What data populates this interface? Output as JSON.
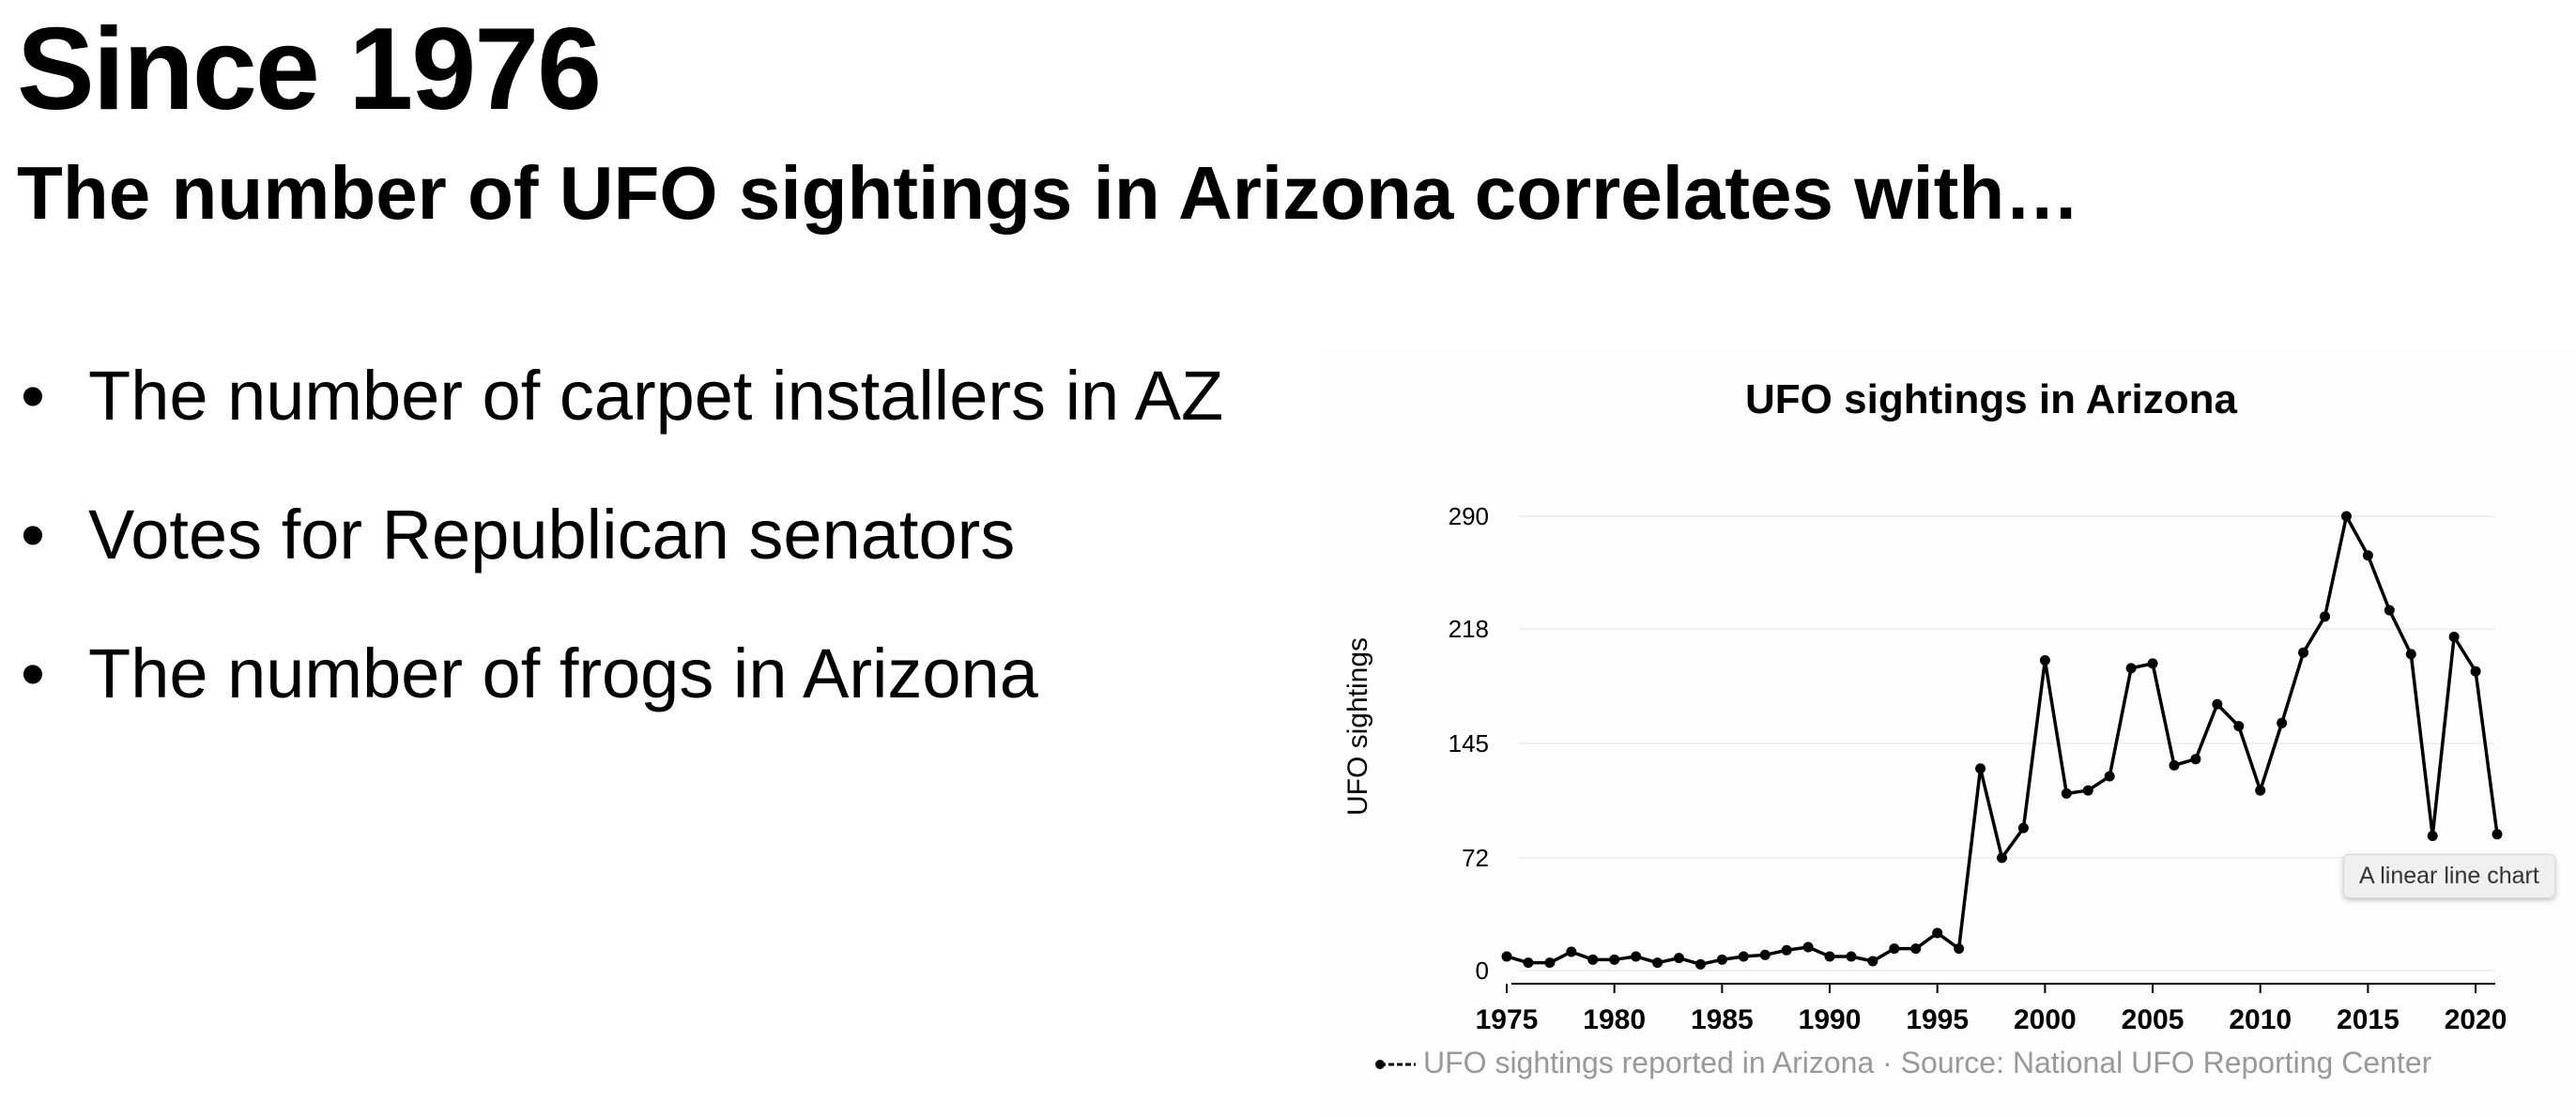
{
  "slide": {
    "title": "Since 1976",
    "subtitle": "The number of UFO sightings in Arizona correlates with…",
    "bullets": [
      "The number of carpet installers in AZ",
      "Votes for Republican senators",
      "The number of frogs in Arizona"
    ]
  },
  "tooltip": "A linear line chart",
  "colors": {
    "line": "#000000",
    "grid": "#eeeeee",
    "axis": "#000000",
    "legend_text": "#999999"
  },
  "chart_data": {
    "type": "line",
    "title": "UFO sightings in Arizona",
    "ylabel": "UFO sightings",
    "xlabel": "",
    "xlim": [
      1975,
      2021
    ],
    "ylim": [
      0,
      290
    ],
    "yticks": [
      0,
      72,
      145,
      218,
      290
    ],
    "xticks": [
      1975,
      1980,
      1985,
      1990,
      1995,
      2000,
      2005,
      2010,
      2015,
      2020
    ],
    "grid": true,
    "legend": "UFO sightings reported in Arizona · Source: National UFO Reporting Center",
    "series": [
      {
        "name": "UFO sightings reported in Arizona",
        "x": [
          1975,
          1976,
          1977,
          1978,
          1979,
          1980,
          1981,
          1982,
          1983,
          1984,
          1985,
          1986,
          1987,
          1988,
          1989,
          1990,
          1991,
          1992,
          1993,
          1994,
          1995,
          1996,
          1997,
          1998,
          1999,
          2000,
          2001,
          2002,
          2003,
          2004,
          2005,
          2006,
          2007,
          2008,
          2009,
          2010,
          2011,
          2012,
          2013,
          2014,
          2015,
          2016,
          2017,
          2018,
          2019,
          2020,
          2021
        ],
        "values": [
          9,
          5,
          5,
          12,
          7,
          7,
          9,
          5,
          8,
          4,
          7,
          9,
          10,
          13,
          15,
          9,
          9,
          6,
          14,
          14,
          24,
          14,
          129,
          72,
          91,
          198,
          113,
          115,
          124,
          193,
          196,
          131,
          135,
          170,
          156,
          115,
          158,
          203,
          226,
          290,
          265,
          230,
          202,
          86,
          213,
          191,
          87
        ]
      }
    ]
  }
}
